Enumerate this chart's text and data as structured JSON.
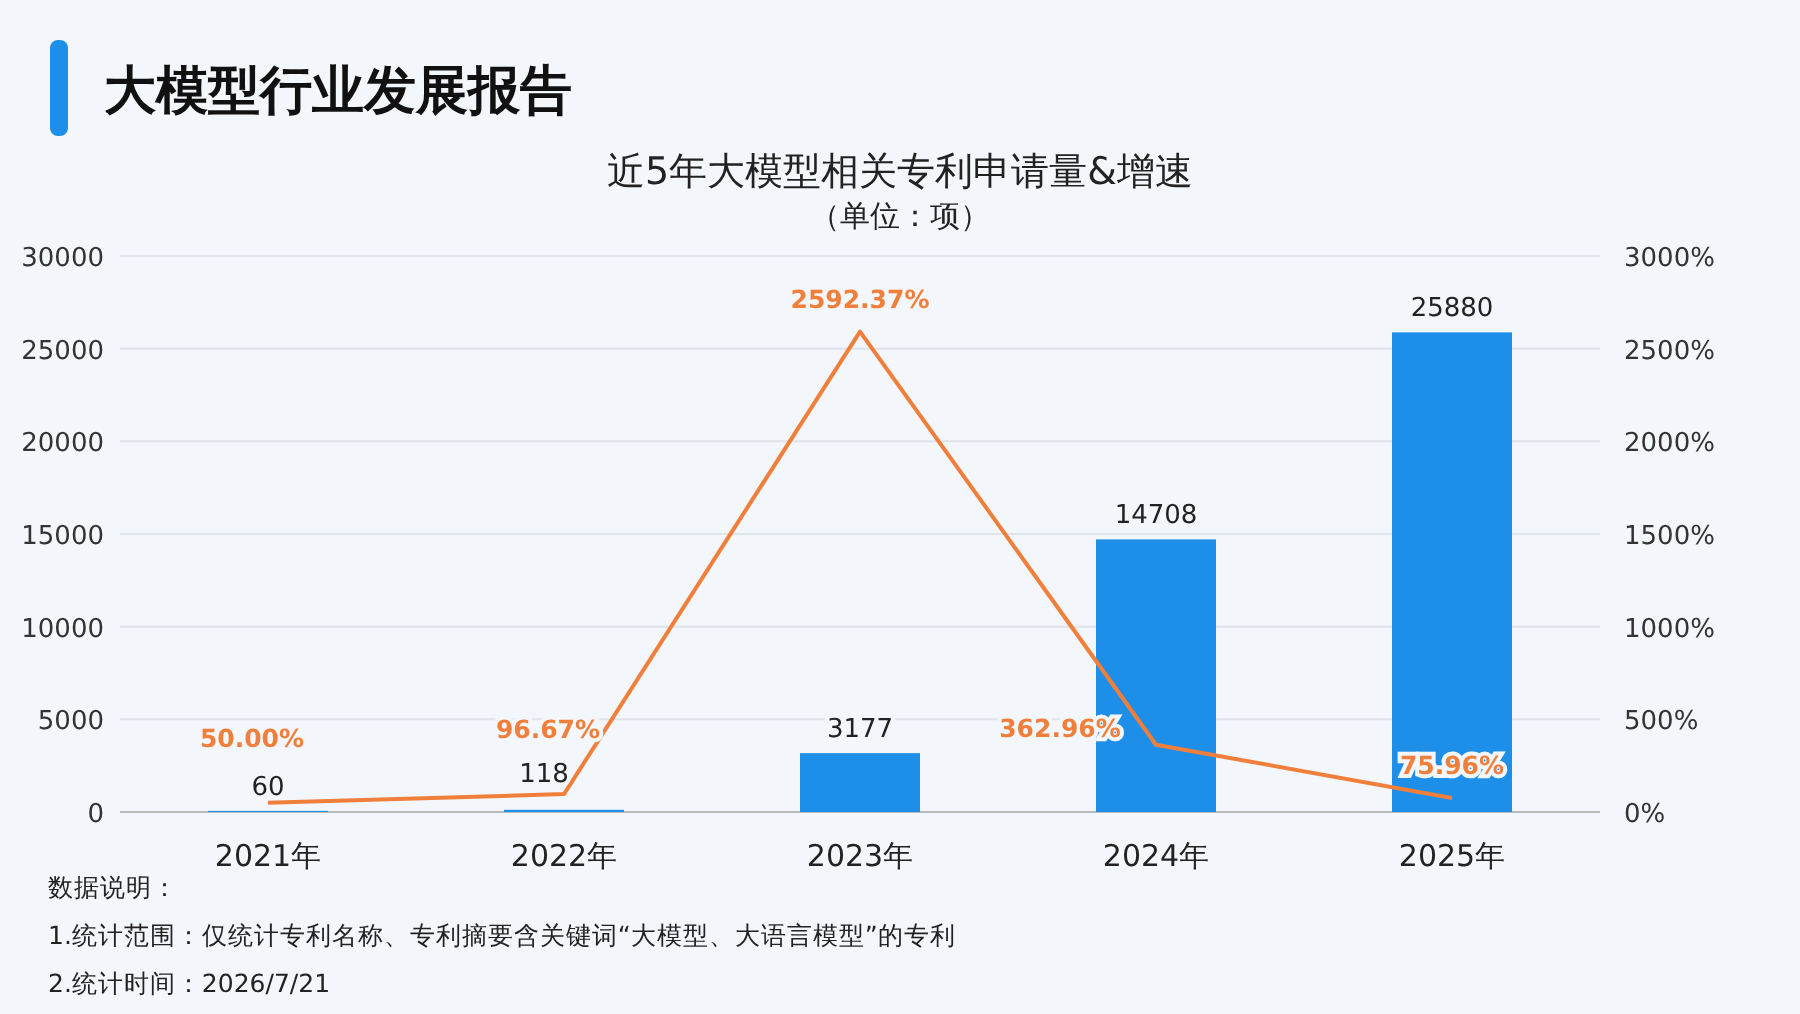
{
  "chart_data": {
    "type": "bar",
    "title": "大模型行业发展报告",
    "subtitle": "近5年大模型相关专利申请量&增速",
    "annotations": [
      "（单位：项）",
      "数据说明：",
      "1.统计范围：仅统计专利名称、专利摘要含关键词“大模型、大语言模型”的专利",
      "2.统计时间：2026/7/21"
    ],
    "categories": [
      "2021年",
      "2022年",
      "2023年",
      "2024年",
      "2025年"
    ],
    "series": [
      {
        "color": "#1e8fe8",
        "values": [
          60,
          118,
          3177,
          14708,
          25880
        ],
        "value_labels": [
          "60",
          "118",
          "3177",
          "14708",
          "25880"
        ]
      },
      {
        "type": "line",
        "axis": "y2",
        "color": "#f07f3c",
        "marker": "none",
        "values": [
          50.0,
          96.67,
          2592.37,
          362.96,
          75.96
        ],
        "value_labels": [
          "50.00%",
          "96.67%",
          "2592.37%",
          "362.96%",
          "75.96%"
        ]
      }
    ],
    "ylim": [
      0,
      30000
    ],
    "yticks": [
      0,
      5000,
      10000,
      15000,
      20000,
      25000,
      30000
    ],
    "y2lim": [
      0,
      3000
    ],
    "y2ticks": [
      {
        "value": 0,
        "label": "0%"
      },
      {
        "value": 500,
        "label": "500%"
      },
      {
        "value": 1000,
        "label": "1000%"
      },
      {
        "value": 1500,
        "label": "1500%"
      },
      {
        "value": 2000,
        "label": "2000%"
      },
      {
        "value": 2500,
        "label": "2500%"
      },
      {
        "value": 3000,
        "label": "3000%"
      }
    ],
    "grid": "y"
  }
}
